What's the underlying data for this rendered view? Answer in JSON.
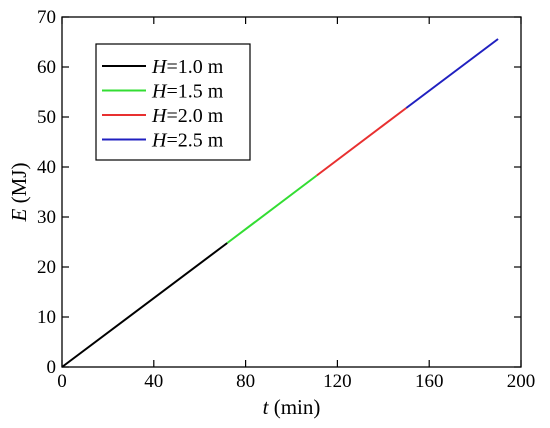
{
  "chart_data": {
    "type": "line",
    "title": "",
    "xlabel_var": "t",
    "xlabel_unit": " (min)",
    "ylabel_var": "E",
    "ylabel_unit": " (MJ)",
    "xlim": [
      0,
      200
    ],
    "ylim": [
      0,
      70
    ],
    "xticks": [
      0,
      40,
      80,
      120,
      160,
      200
    ],
    "yticks": [
      0,
      10,
      20,
      30,
      40,
      50,
      60,
      70
    ],
    "grid": false,
    "legend_position": "top-left",
    "series": [
      {
        "name_var": "H",
        "name_rest": "=1.0 m",
        "color": "#000000",
        "x": [
          0,
          72
        ],
        "y": [
          0,
          24.8
        ]
      },
      {
        "name_var": "H",
        "name_rest": "=1.5 m",
        "color": "#33dd33",
        "x": [
          72,
          111
        ],
        "y": [
          24.8,
          38.3
        ]
      },
      {
        "name_var": "H",
        "name_rest": "=2.0 m",
        "color": "#e83030",
        "x": [
          111,
          150
        ],
        "y": [
          38.3,
          51.8
        ]
      },
      {
        "name_var": "H",
        "name_rest": "=2.5 m",
        "color": "#2020c0",
        "x": [
          150,
          190
        ],
        "y": [
          51.8,
          65.6
        ]
      }
    ]
  }
}
